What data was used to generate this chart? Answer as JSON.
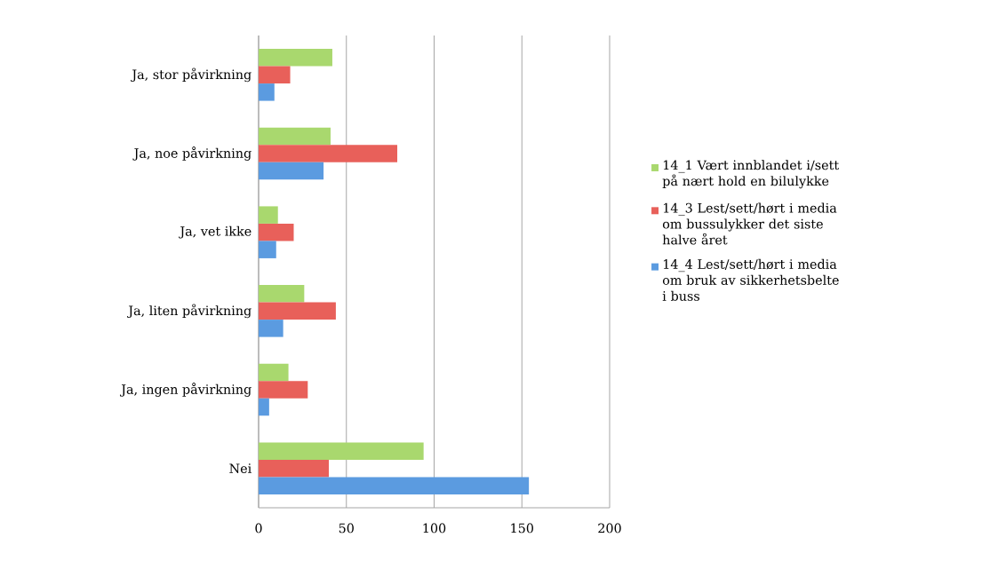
{
  "chart_data": {
    "type": "bar",
    "orientation": "horizontal",
    "categories": [
      "Ja, stor påvirkning",
      "Ja, noe påvirkning",
      "Ja, vet ikke",
      "Ja, liten påvirkning",
      "Ja, ingen påvirkning",
      "Nei"
    ],
    "series": [
      {
        "name": "14_1 Vært innblandet i/sett på nært hold en bilulykke",
        "color": "#a9d86e",
        "values": [
          42,
          41,
          11,
          26,
          17,
          94
        ]
      },
      {
        "name": "14_3 Lest/sett/hørt i media om bussulykker det siste halve året",
        "color": "#e8605a",
        "values": [
          18,
          79,
          20,
          44,
          28,
          40
        ]
      },
      {
        "name": "14_4 Lest/sett/hørt i media om bruk av sikkerhetsbelte i buss",
        "color": "#5b9be0",
        "values": [
          9,
          37,
          10,
          14,
          6,
          154
        ]
      }
    ],
    "xlim": [
      0,
      200
    ],
    "xticks": [
      0,
      50,
      100,
      150,
      200
    ],
    "grid": "x",
    "legend": "right"
  }
}
